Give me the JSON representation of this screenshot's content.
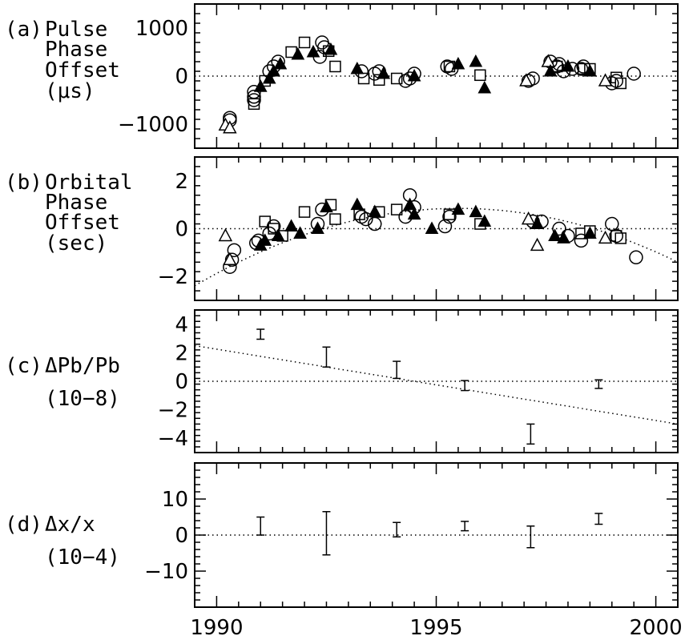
{
  "chart_data": [
    {
      "panel": "(a)",
      "type": "scatter",
      "ylabel_lines": [
        "Pulse",
        "Phase",
        "Offset",
        "(μs)"
      ],
      "ylim": [
        -1500,
        1500
      ],
      "yticks": [
        1000,
        0,
        -1000
      ],
      "ytick_labels": [
        "1000",
        "0",
        "−1000"
      ],
      "reference_line": 0,
      "markers": {
        "circle": [
          [
            1990.3,
            -870
          ],
          [
            1990.3,
            -920
          ],
          [
            1990.85,
            -500
          ],
          [
            1990.85,
            -430
          ],
          [
            1990.85,
            -330
          ],
          [
            1991.2,
            100
          ],
          [
            1991.3,
            200
          ],
          [
            1991.4,
            300
          ],
          [
            1992.35,
            400
          ],
          [
            1992.4,
            700
          ],
          [
            1992.45,
            600
          ],
          [
            1993.3,
            100
          ],
          [
            1993.6,
            50
          ],
          [
            1993.7,
            100
          ],
          [
            1994.3,
            -100
          ],
          [
            1994.4,
            -50
          ],
          [
            1994.5,
            50
          ],
          [
            1995.25,
            200
          ],
          [
            1995.35,
            150
          ],
          [
            1997.1,
            -100
          ],
          [
            1997.2,
            -50
          ],
          [
            1997.6,
            300
          ],
          [
            1997.75,
            200
          ],
          [
            1997.8,
            250
          ],
          [
            1997.9,
            100
          ],
          [
            1998.1,
            150
          ],
          [
            1998.3,
            150
          ],
          [
            1998.35,
            200
          ],
          [
            1999.0,
            -150
          ],
          [
            1999.1,
            -100
          ],
          [
            1999.5,
            50
          ]
        ],
        "square": [
          [
            1990.85,
            -580
          ],
          [
            1991.1,
            -100
          ],
          [
            1991.7,
            500
          ],
          [
            1992.0,
            700
          ],
          [
            1992.55,
            520
          ],
          [
            1992.7,
            200
          ],
          [
            1993.35,
            -50
          ],
          [
            1993.7,
            -80
          ],
          [
            1994.1,
            -50
          ],
          [
            1995.3,
            200
          ],
          [
            1996.0,
            20
          ],
          [
            1997.75,
            200
          ],
          [
            1998.35,
            150
          ],
          [
            1998.5,
            150
          ],
          [
            1999.1,
            -30
          ],
          [
            1999.2,
            -150
          ]
        ],
        "triangle": [
          [
            1990.2,
            -1020
          ],
          [
            1990.3,
            -1080
          ],
          [
            1997.05,
            -100
          ],
          [
            1997.55,
            300
          ],
          [
            1998.85,
            -100
          ]
        ],
        "filled_triangle": [
          [
            1991.0,
            -220
          ],
          [
            1991.2,
            -50
          ],
          [
            1991.3,
            100
          ],
          [
            1991.45,
            250
          ],
          [
            1991.85,
            450
          ],
          [
            1992.2,
            500
          ],
          [
            1992.6,
            550
          ],
          [
            1993.2,
            150
          ],
          [
            1993.8,
            50
          ],
          [
            1994.5,
            0
          ],
          [
            1995.5,
            250
          ],
          [
            1995.9,
            300
          ],
          [
            1996.1,
            -250
          ],
          [
            1997.6,
            100
          ],
          [
            1998.0,
            200
          ],
          [
            1998.5,
            100
          ]
        ]
      }
    },
    {
      "panel": "(b)",
      "type": "scatter",
      "ylabel_lines": [
        "Orbital",
        "Phase",
        "Offset",
        "(sec)"
      ],
      "ylim": [
        -3,
        3
      ],
      "yticks": [
        2,
        0,
        -2
      ],
      "ytick_labels": [
        "2",
        "0",
        "−2"
      ],
      "reference_line": 0,
      "dotted_curve": "quadratic",
      "markers": {
        "circle": [
          [
            1990.3,
            -1.6
          ],
          [
            1990.35,
            -1.3
          ],
          [
            1990.4,
            -0.9
          ],
          [
            1990.9,
            -0.6
          ],
          [
            1990.95,
            -0.5
          ],
          [
            1991.2,
            -0.2
          ],
          [
            1991.3,
            0.1
          ],
          [
            1992.3,
            0.2
          ],
          [
            1992.4,
            0.8
          ],
          [
            1993.3,
            0.5
          ],
          [
            1993.4,
            0.4
          ],
          [
            1993.6,
            0.2
          ],
          [
            1994.3,
            0.5
          ],
          [
            1994.4,
            1.4
          ],
          [
            1994.5,
            0.9
          ],
          [
            1995.2,
            0.1
          ],
          [
            1995.3,
            0.5
          ],
          [
            1997.2,
            0.3
          ],
          [
            1997.4,
            0.3
          ],
          [
            1997.8,
            0.0
          ],
          [
            1998.0,
            -0.3
          ],
          [
            1998.3,
            -0.5
          ],
          [
            1999.0,
            0.2
          ],
          [
            1999.1,
            -0.3
          ],
          [
            1999.55,
            -1.2
          ]
        ],
        "square": [
          [
            1991.1,
            0.3
          ],
          [
            1991.3,
            0.0
          ],
          [
            1991.5,
            -0.3
          ],
          [
            1992.0,
            0.7
          ],
          [
            1992.6,
            1.0
          ],
          [
            1992.7,
            0.4
          ],
          [
            1993.25,
            0.6
          ],
          [
            1993.7,
            0.7
          ],
          [
            1994.1,
            0.8
          ],
          [
            1995.3,
            0.6
          ],
          [
            1996.0,
            0.2
          ],
          [
            1998.3,
            -0.2
          ],
          [
            1998.5,
            -0.1
          ],
          [
            1999.1,
            -0.3
          ],
          [
            1999.2,
            -0.4
          ]
        ],
        "triangle": [
          [
            1990.2,
            -0.3
          ],
          [
            1990.3,
            -1.3
          ],
          [
            1997.1,
            0.4
          ],
          [
            1997.3,
            -0.7
          ],
          [
            1998.85,
            -0.4
          ]
        ],
        "filled_triangle": [
          [
            1991.0,
            -0.7
          ],
          [
            1991.1,
            -0.5
          ],
          [
            1991.4,
            -0.3
          ],
          [
            1991.7,
            0.1
          ],
          [
            1991.9,
            -0.2
          ],
          [
            1992.3,
            0.0
          ],
          [
            1992.5,
            0.9
          ],
          [
            1993.2,
            1.0
          ],
          [
            1993.6,
            0.7
          ],
          [
            1994.4,
            1.0
          ],
          [
            1994.5,
            0.6
          ],
          [
            1994.9,
            0.0
          ],
          [
            1995.5,
            0.8
          ],
          [
            1995.9,
            0.7
          ],
          [
            1996.1,
            0.3
          ],
          [
            1997.3,
            0.2
          ],
          [
            1997.7,
            -0.3
          ],
          [
            1997.9,
            -0.4
          ],
          [
            1998.5,
            -0.2
          ]
        ]
      }
    },
    {
      "panel": "(c)",
      "type": "errorbar",
      "ylabel_lines": [
        "ΔPb/Pb",
        "(10−8)"
      ],
      "ylim": [
        -5,
        5
      ],
      "yticks": [
        4,
        2,
        0,
        -2,
        -4
      ],
      "ytick_labels": [
        "4",
        "2",
        "0",
        "−2",
        "−4"
      ],
      "reference_line": 0,
      "fit_line": [
        [
          1989.5,
          2.5
        ],
        [
          2000.5,
          -3.0
        ]
      ],
      "points": [
        [
          1991.0,
          3.3,
          0.35
        ],
        [
          1992.5,
          1.7,
          0.7
        ],
        [
          1994.1,
          0.8,
          0.6
        ],
        [
          1995.65,
          -0.3,
          0.35
        ],
        [
          1997.15,
          -3.7,
          0.7
        ],
        [
          1998.7,
          -0.2,
          0.3
        ]
      ]
    },
    {
      "panel": "(d)",
      "type": "errorbar",
      "ylabel_lines": [
        "Δx/x",
        "(10−4)"
      ],
      "ylim": [
        -20,
        20
      ],
      "yticks": [
        10,
        0,
        -10
      ],
      "ytick_labels": [
        "10",
        "0",
        "−10"
      ],
      "xticks": [
        1990,
        1995,
        2000
      ],
      "xlim": [
        1989.5,
        2000.5
      ],
      "reference_line": 0,
      "points": [
        [
          1991.0,
          2.5,
          2.5
        ],
        [
          1992.5,
          0.5,
          6
        ],
        [
          1994.1,
          1.5,
          2
        ],
        [
          1995.65,
          2.5,
          1.3
        ],
        [
          1997.15,
          -0.5,
          3
        ],
        [
          1998.7,
          4.5,
          1.5
        ]
      ]
    }
  ]
}
